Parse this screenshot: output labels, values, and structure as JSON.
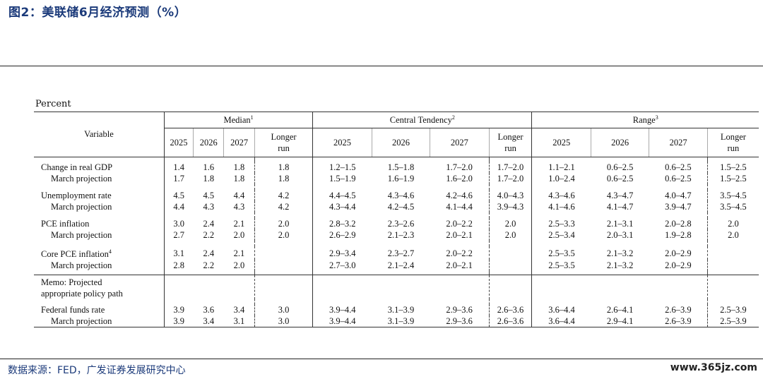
{
  "title": "图2：美联储6月经济预测（%）",
  "unit": "Percent",
  "headers": {
    "variable": "Variable",
    "median": "Median",
    "median_sup": "1",
    "central": "Central Tendency",
    "central_sup": "2",
    "range": "Range",
    "range_sup": "3",
    "years": [
      "2025",
      "2026",
      "2027"
    ],
    "longer1": "Longer",
    "longer2": "run"
  },
  "rows": [
    {
      "label": "Change in real GDP",
      "median": [
        "1.4",
        "1.6",
        "1.8",
        "1.8"
      ],
      "central": [
        "1.2–1.5",
        "1.5–1.8",
        "1.7–2.0",
        "1.7–2.0"
      ],
      "range": [
        "1.1–2.1",
        "0.6–2.5",
        "0.6–2.5",
        "1.5–2.5"
      ]
    },
    {
      "label": "March projection",
      "median": [
        "1.7",
        "1.8",
        "1.8",
        "1.8"
      ],
      "central": [
        "1.5–1.9",
        "1.6–1.9",
        "1.6–2.0",
        "1.7–2.0"
      ],
      "range": [
        "1.0–2.4",
        "0.6–2.5",
        "0.6–2.5",
        "1.5–2.5"
      ]
    },
    {
      "label": "Unemployment rate",
      "median": [
        "4.5",
        "4.5",
        "4.4",
        "4.2"
      ],
      "central": [
        "4.4–4.5",
        "4.3–4.6",
        "4.2–4.6",
        "4.0–4.3"
      ],
      "range": [
        "4.3–4.6",
        "4.3–4.7",
        "4.0–4.7",
        "3.5–4.5"
      ]
    },
    {
      "label": "March projection",
      "median": [
        "4.4",
        "4.3",
        "4.3",
        "4.2"
      ],
      "central": [
        "4.3–4.4",
        "4.2–4.5",
        "4.1–4.4",
        "3.9–4.3"
      ],
      "range": [
        "4.1–4.6",
        "4.1–4.7",
        "3.9–4.7",
        "3.5–4.5"
      ]
    },
    {
      "label": "PCE inflation",
      "median": [
        "3.0",
        "2.4",
        "2.1",
        "2.0"
      ],
      "central": [
        "2.8–3.2",
        "2.3–2.6",
        "2.0–2.2",
        "2.0"
      ],
      "range": [
        "2.5–3.3",
        "2.1–3.1",
        "2.0–2.8",
        "2.0"
      ]
    },
    {
      "label": "March projection",
      "median": [
        "2.7",
        "2.2",
        "2.0",
        "2.0"
      ],
      "central": [
        "2.6–2.9",
        "2.1–2.3",
        "2.0–2.1",
        "2.0"
      ],
      "range": [
        "2.5–3.4",
        "2.0–3.1",
        "1.9–2.8",
        "2.0"
      ]
    },
    {
      "label": "Core PCE inflation",
      "sup": "4",
      "median": [
        "3.1",
        "2.4",
        "2.1",
        ""
      ],
      "central": [
        "2.9–3.4",
        "2.3–2.7",
        "2.0–2.2",
        ""
      ],
      "range": [
        "2.5–3.5",
        "2.1–3.2",
        "2.0–2.9",
        ""
      ]
    },
    {
      "label": "March projection",
      "median": [
        "2.8",
        "2.2",
        "2.0",
        ""
      ],
      "central": [
        "2.7–3.0",
        "2.1–2.4",
        "2.0–2.1",
        ""
      ],
      "range": [
        "2.5–3.5",
        "2.1–3.2",
        "2.0–2.9",
        ""
      ]
    }
  ],
  "memo": {
    "line1": "Memo: Projected",
    "line2": "appropriate policy path"
  },
  "policy_rows": [
    {
      "label": "Federal funds rate",
      "median": [
        "3.9",
        "3.6",
        "3.4",
        "3.0"
      ],
      "central": [
        "3.9–4.4",
        "3.1–3.9",
        "2.9–3.6",
        "2.6–3.6"
      ],
      "range": [
        "3.6–4.4",
        "2.6–4.1",
        "2.6–3.9",
        "2.5–3.9"
      ]
    },
    {
      "label": "March projection",
      "median": [
        "3.9",
        "3.4",
        "3.1",
        "3.0"
      ],
      "central": [
        "3.9–4.4",
        "3.1–3.9",
        "2.9–3.6",
        "2.6–3.6"
      ],
      "range": [
        "3.6–4.4",
        "2.9–4.1",
        "2.6–3.9",
        "2.5–3.9"
      ]
    }
  ],
  "source": "数据来源：FED，广发证券发展研究中心",
  "watermark": "www.365jz.com"
}
